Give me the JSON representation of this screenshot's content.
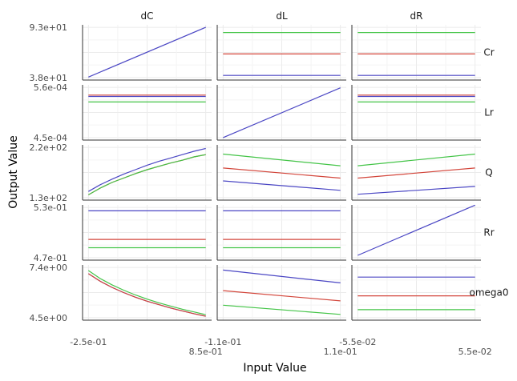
{
  "chart_data": {
    "type": "line",
    "xlabel": "Input Value",
    "ylabel": "Output Value",
    "columns": [
      "dC",
      "dL",
      "dR"
    ],
    "rows": [
      "Cr",
      "Lr",
      "Q",
      "Rr",
      "omega0"
    ],
    "x_ranges": [
      [
        -0.25,
        0.85
      ],
      [
        -0.11,
        0.11
      ],
      [
        -0.055,
        0.055
      ]
    ],
    "x_tick_labels": [
      [
        "-2.5e-01",
        "8.5e-01"
      ],
      [
        "-1.1e-01",
        "1.1e-01"
      ],
      [
        "-5.5e-02",
        "5.5e-02"
      ]
    ],
    "y_ranges": [
      [
        38,
        93
      ],
      [
        0.00045,
        0.00056
      ],
      [
        130,
        220
      ],
      [
        0.47,
        0.53
      ],
      [
        4.5,
        7.4
      ]
    ],
    "y_tick_labels": [
      [
        "3.8e+01",
        "9.3e+01"
      ],
      [
        "4.5e-04",
        "5.6e-04"
      ],
      [
        "1.3e+02",
        "2.2e+02"
      ],
      [
        "4.7e-01",
        "5.3e-01"
      ],
      [
        "4.5e+00",
        "7.4e+00"
      ]
    ],
    "series_colors": [
      "#4b47c4",
      "#d3463b",
      "#43c447"
    ],
    "panels": [
      {
        "row": 0,
        "col": 0,
        "series": [
          {
            "x": [
              -0.25,
              0.85
            ],
            "y": [
              38.5,
              93.0
            ]
          }
        ]
      },
      {
        "row": 0,
        "col": 1,
        "series": [
          {
            "x": [
              -0.11,
              0.11
            ],
            "y": [
              40.3,
              40.3
            ]
          },
          {
            "x": [
              -0.11,
              0.11
            ],
            "y": [
              63.8,
              63.8
            ]
          },
          {
            "x": [
              -0.11,
              0.11
            ],
            "y": [
              87.3,
              87.3
            ]
          }
        ]
      },
      {
        "row": 0,
        "col": 2,
        "series": [
          {
            "x": [
              -0.055,
              0.055
            ],
            "y": [
              40.3,
              40.3
            ]
          },
          {
            "x": [
              -0.055,
              0.055
            ],
            "y": [
              63.8,
              63.8
            ]
          },
          {
            "x": [
              -0.055,
              0.055
            ],
            "y": [
              87.3,
              87.3
            ]
          }
        ]
      },
      {
        "row": 1,
        "col": 0,
        "series": [
          {
            "x": [
              -0.25,
              0.85
            ],
            "y": [
              0.00054,
              0.00054
            ]
          },
          {
            "x": [
              -0.25,
              0.85
            ],
            "y": [
              0.000543,
              0.000543
            ]
          },
          {
            "x": [
              -0.25,
              0.85
            ],
            "y": [
              0.000528,
              0.000528
            ]
          }
        ]
      },
      {
        "row": 1,
        "col": 1,
        "series": [
          {
            "x": [
              -0.11,
              0.11
            ],
            "y": [
              0.00045,
              0.000559
            ]
          }
        ]
      },
      {
        "row": 1,
        "col": 2,
        "series": [
          {
            "x": [
              -0.055,
              0.055
            ],
            "y": [
              0.00054,
              0.00054
            ]
          },
          {
            "x": [
              -0.055,
              0.055
            ],
            "y": [
              0.000543,
              0.000543
            ]
          },
          {
            "x": [
              -0.055,
              0.055
            ],
            "y": [
              0.000528,
              0.000528
            ]
          }
        ]
      },
      {
        "row": 2,
        "col": 0,
        "series": [
          {
            "x": [
              -0.25,
              -0.14,
              -0.03,
              0.08,
              0.19,
              0.3,
              0.41,
              0.52,
              0.63,
              0.74,
              0.85
            ],
            "y": [
              141,
              153,
              163,
              172,
              180,
              188,
              195,
              201,
              207,
              213,
              218
            ]
          },
          {
            "x": [
              -0.25,
              -0.14,
              -0.03,
              0.08,
              0.19,
              0.3,
              0.41,
              0.52,
              0.63,
              0.74,
              0.85
            ],
            "y": [
              135,
              147,
              157,
              165,
              173,
              180,
              186,
              192,
              197,
              203,
              207
            ]
          },
          {
            "x": [
              -0.25,
              -0.14,
              -0.03,
              0.08,
              0.19,
              0.3,
              0.41,
              0.52,
              0.63,
              0.74,
              0.85
            ],
            "y": [
              135,
              147,
              157,
              165,
              173,
              180,
              186,
              192,
              197,
              203,
              207
            ]
          }
        ]
      },
      {
        "row": 2,
        "col": 1,
        "series": [
          {
            "x": [
              -0.11,
              0.11
            ],
            "y": [
              160,
              143
            ]
          },
          {
            "x": [
              -0.11,
              0.11
            ],
            "y": [
              183,
              165
            ]
          },
          {
            "x": [
              -0.11,
              0.11
            ],
            "y": [
              208,
              187
            ]
          }
        ]
      },
      {
        "row": 2,
        "col": 2,
        "series": [
          {
            "x": [
              -0.055,
              0.055
            ],
            "y": [
              136,
              150
            ]
          },
          {
            "x": [
              -0.055,
              0.055
            ],
            "y": [
              165,
              183
            ]
          },
          {
            "x": [
              -0.055,
              0.055
            ],
            "y": [
              187,
              208
            ]
          }
        ]
      },
      {
        "row": 3,
        "col": 0,
        "series": [
          {
            "x": [
              -0.25,
              0.85
            ],
            "y": [
              0.5259,
              0.5259
            ]
          },
          {
            "x": [
              -0.25,
              0.85
            ],
            "y": [
              0.4918,
              0.4918
            ]
          },
          {
            "x": [
              -0.25,
              0.85
            ],
            "y": [
              0.4818,
              0.4818
            ]
          }
        ]
      },
      {
        "row": 3,
        "col": 1,
        "series": [
          {
            "x": [
              -0.11,
              0.11
            ],
            "y": [
              0.5259,
              0.5259
            ]
          },
          {
            "x": [
              -0.11,
              0.11
            ],
            "y": [
              0.4918,
              0.4918
            ]
          },
          {
            "x": [
              -0.11,
              0.11
            ],
            "y": [
              0.4818,
              0.4818
            ]
          }
        ]
      },
      {
        "row": 3,
        "col": 2,
        "series": [
          {
            "x": [
              -0.055,
              0.055
            ],
            "y": [
              0.4727,
              0.5327
            ]
          }
        ]
      },
      {
        "row": 4,
        "col": 0,
        "series": [
          {
            "x": [
              -0.25,
              -0.14,
              -0.03,
              0.08,
              0.19,
              0.3,
              0.41,
              0.52,
              0.63,
              0.74,
              0.85
            ],
            "y": [
              7.04,
              6.6,
              6.25,
              5.95,
              5.68,
              5.45,
              5.25,
              5.06,
              4.89,
              4.73,
              4.58
            ]
          },
          {
            "x": [
              -0.25,
              -0.14,
              -0.03,
              0.08,
              0.19,
              0.3,
              0.41,
              0.52,
              0.63,
              0.74,
              0.85
            ],
            "y": [
              7.04,
              6.6,
              6.25,
              5.95,
              5.68,
              5.45,
              5.25,
              5.06,
              4.89,
              4.73,
              4.58
            ]
          },
          {
            "x": [
              -0.25,
              -0.14,
              -0.03,
              0.08,
              0.19,
              0.3,
              0.41,
              0.52,
              0.63,
              0.74,
              0.85
            ],
            "y": [
              7.22,
              6.76,
              6.4,
              6.09,
              5.81,
              5.57,
              5.36,
              5.17,
              4.99,
              4.83,
              4.67
            ]
          }
        ]
      },
      {
        "row": 4,
        "col": 1,
        "series": [
          {
            "x": [
              -0.11,
              0.11
            ],
            "y": [
              7.25,
              6.51
            ]
          },
          {
            "x": [
              -0.11,
              0.11
            ],
            "y": [
              6.06,
              5.47
            ]
          },
          {
            "x": [
              -0.11,
              0.11
            ],
            "y": [
              5.22,
              4.69
            ]
          }
        ]
      },
      {
        "row": 4,
        "col": 2,
        "series": [
          {
            "x": [
              -0.055,
              0.055
            ],
            "y": [
              6.84,
              6.84
            ]
          },
          {
            "x": [
              -0.055,
              0.055
            ],
            "y": [
              5.76,
              5.76
            ]
          },
          {
            "x": [
              -0.055,
              0.055
            ],
            "y": [
              4.96,
              4.96
            ]
          }
        ]
      }
    ]
  }
}
